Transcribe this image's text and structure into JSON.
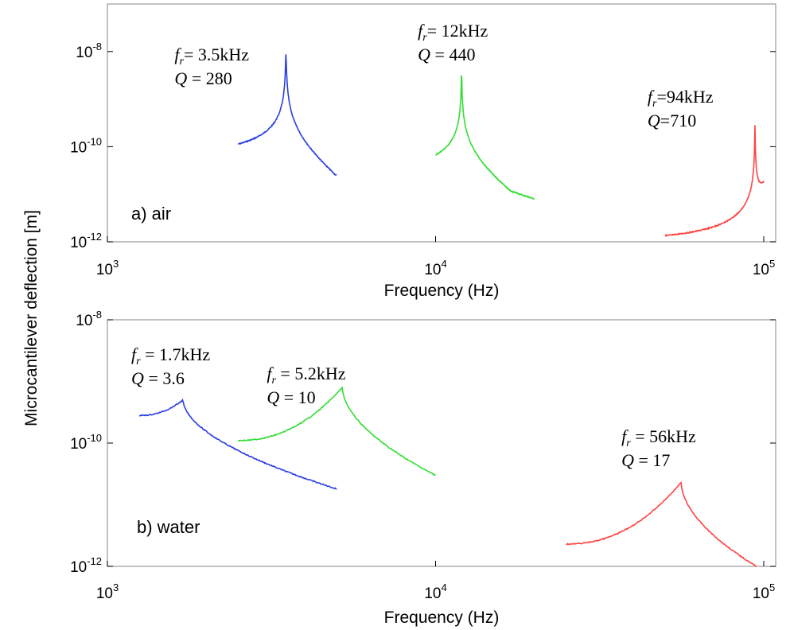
{
  "chart_data": [
    {
      "type": "line",
      "panel_label": "a) air",
      "xlabel": "Frequency (Hz)",
      "ylabel": "Microcantilever deflection [m]",
      "xscale": "log",
      "yscale": "log",
      "xlim": [
        1000,
        100000
      ],
      "ylim": [
        1e-12,
        1e-07
      ],
      "x_ticks": [
        {
          "value": 1000,
          "base": "10",
          "exp": "3"
        },
        {
          "value": 10000,
          "base": "10",
          "exp": "4"
        },
        {
          "value": 100000,
          "base": "10",
          "exp": "5"
        }
      ],
      "y_ticks": [
        {
          "value": 1e-08,
          "base": "10",
          "exp": "-8"
        },
        {
          "value": 1e-10,
          "base": "10",
          "exp": "-10"
        },
        {
          "value": 1e-12,
          "base": "10",
          "exp": "-12"
        }
      ],
      "grid": false,
      "series": [
        {
          "color": "#2a3fe0",
          "fr_hz": 3500,
          "q": 280,
          "x_range": [
            2500,
            5000
          ],
          "peak_y": 9e-09,
          "base_y": 6e-11,
          "end_y": 2.5e-11
        },
        {
          "color": "#33dd33",
          "fr_hz": 12000,
          "q": 440,
          "x_range": [
            10000,
            20000
          ],
          "peak_y": 4e-09,
          "base_y": 2.5e-11,
          "end_y": 8e-12
        },
        {
          "color": "#ff4444",
          "fr_hz": 94000,
          "q": 710,
          "x_range": [
            50000,
            100000
          ],
          "peak_y": 3.5e-10,
          "base_y": 1e-12,
          "end_y": 5e-12
        }
      ],
      "annotations": [
        {
          "f_label": "f",
          "sub": "r",
          "fr_text": "= 3.5kHz",
          "q_label": "Q",
          "q_text": " = 280",
          "fr_hz": 3500
        },
        {
          "f_label": "f",
          "sub": "r",
          "fr_text": "= 12kHz",
          "q_label": "Q",
          "q_text": " = 440",
          "fr_hz": 12000
        },
        {
          "f_label": "f",
          "sub": "r",
          "fr_text": "=94kHz",
          "q_label": "Q",
          "q_text": "=710",
          "fr_hz": 94000
        }
      ]
    },
    {
      "type": "line",
      "panel_label": "b) water",
      "xlabel": "Frequency (Hz)",
      "ylabel": "Microcantilever deflection [m]",
      "xscale": "log",
      "yscale": "log",
      "xlim": [
        1000,
        100000
      ],
      "ylim": [
        1e-12,
        1e-08
      ],
      "x_ticks": [
        {
          "value": 1000,
          "base": "10",
          "exp": "3"
        },
        {
          "value": 10000,
          "base": "10",
          "exp": "4"
        },
        {
          "value": 100000,
          "base": "10",
          "exp": "5"
        }
      ],
      "y_ticks": [
        {
          "value": 1e-08,
          "base": "10",
          "exp": "-8"
        },
        {
          "value": 1e-10,
          "base": "10",
          "exp": "-10"
        },
        {
          "value": 1e-12,
          "base": "10",
          "exp": "-12"
        }
      ],
      "grid": false,
      "series": [
        {
          "color": "#2a3fe0",
          "fr_hz": 1700,
          "q": 3.6,
          "x_range": [
            1250,
            5000
          ],
          "peak_y": 5e-10,
          "start_y": 2.8e-10,
          "end_y": 1.8e-11
        },
        {
          "color": "#33dd33",
          "fr_hz": 5200,
          "q": 10,
          "x_range": [
            2500,
            10000
          ],
          "peak_y": 8e-10,
          "start_y": 1.1e-10,
          "end_y": 3e-11
        },
        {
          "color": "#ff4444",
          "fr_hz": 56000,
          "q": 17,
          "x_range": [
            25000,
            95000
          ],
          "peak_y": 2.3e-11,
          "start_y": 2.3e-12,
          "end_y": 1e-12
        }
      ],
      "annotations": [
        {
          "f_label": "f",
          "sub": "r",
          "fr_text": " = 1.7kHz",
          "q_label": "Q",
          "q_text": " = 3.6",
          "fr_hz": 1700
        },
        {
          "f_label": "f",
          "sub": "r",
          "fr_text": " = 5.2kHz",
          "q_label": "Q",
          "q_text": " = 10",
          "fr_hz": 5200
        },
        {
          "f_label": "f",
          "sub": "r",
          "fr_text": " = 56kHz",
          "q_label": "Q",
          "q_text": " = 17",
          "fr_hz": 56000
        }
      ]
    }
  ]
}
